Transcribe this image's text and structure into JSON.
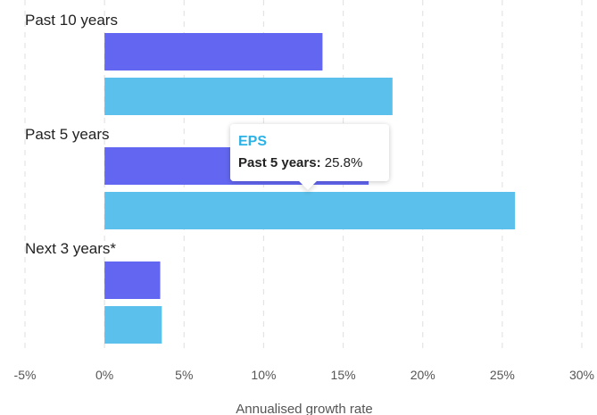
{
  "chart_data": {
    "type": "bar",
    "orientation": "horizontal",
    "categories": [
      "Past 10 years",
      "Past 5 years",
      "Next 3  years*"
    ],
    "series": [
      {
        "values": [
          13.7,
          16.6,
          3.5
        ],
        "color": "#6366f1"
      },
      {
        "name": "EPS",
        "values": [
          18.1,
          25.8,
          3.6
        ],
        "color": "#5bc0eb"
      }
    ],
    "xlabel": "Annualised growth rate",
    "xlim": [
      -5,
      30
    ],
    "xticks": [
      -5,
      0,
      5,
      10,
      15,
      20,
      25,
      30
    ],
    "xtick_labels": [
      "-5%",
      "0%",
      "5%",
      "10%",
      "15%",
      "20%",
      "25%",
      "30%"
    ],
    "grid": "vertical dashed",
    "legend": "none"
  },
  "tooltip": {
    "series": "EPS",
    "label": "Past 5 years:",
    "value": "25.8%"
  }
}
